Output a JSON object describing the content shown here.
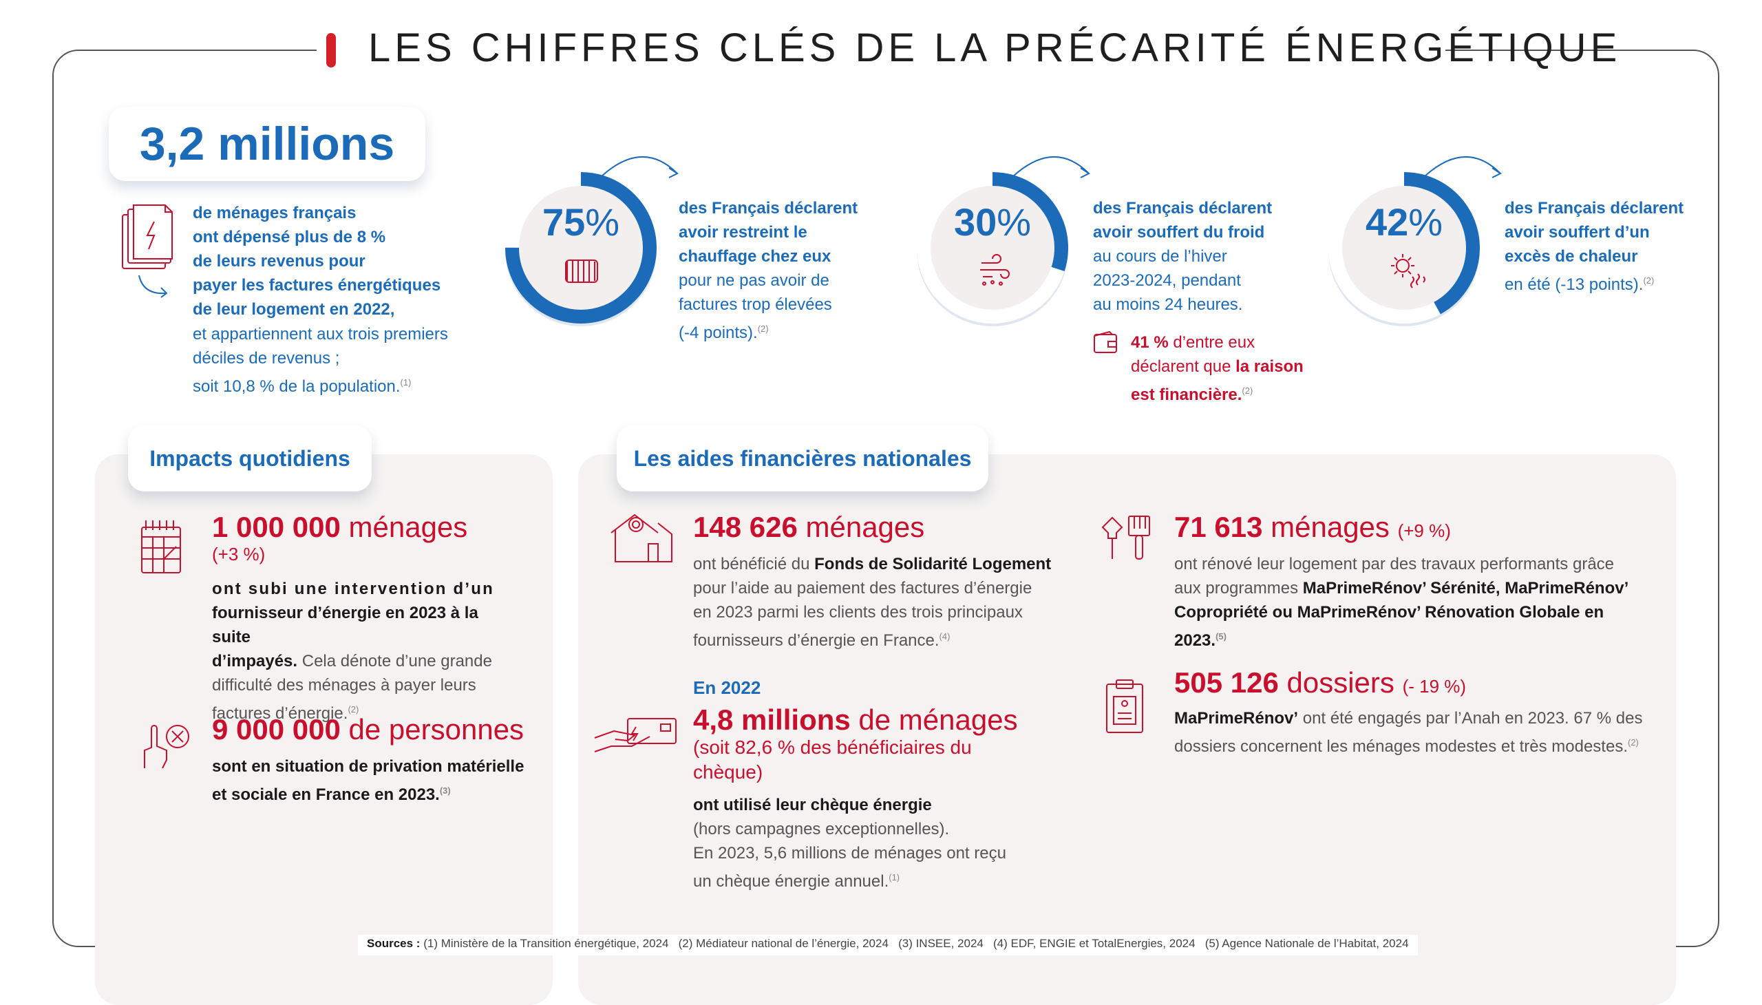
{
  "title": "LES CHIFFRES CLÉS DE LA PRÉCARITÉ ÉNERGÉTIQUE",
  "colors": {
    "accent_blue": "#1c6bb8",
    "accent_red": "#c8102e",
    "panel": "#f5f2f1"
  },
  "key_figure": {
    "value": "3,2 millions",
    "line1": "de ménages français",
    "line2": "ont dépensé plus de 8 %",
    "line3": "de leurs revenus pour",
    "line4": "payer les factures énergétiques",
    "line5": "de leur logement en 2022,",
    "line6": "et appartiennent aux trois premiers",
    "line7": "déciles de revenus ;",
    "line8": "soit 10,8 % de la population.",
    "ref": "(1)",
    "icon": "document-energy-icon"
  },
  "stats": [
    {
      "value": "75",
      "unit": "%",
      "fraction": 0.75,
      "icon": "radiator-icon",
      "bold1": "des Français déclarent",
      "bold2": "avoir restreint le",
      "bold3": "chauffage chez eux",
      "rest1": "pour ne pas avoir de",
      "rest2": "factures trop élevées",
      "rest3": "(-4 points).",
      "ref": "(2)"
    },
    {
      "value": "30",
      "unit": "%",
      "fraction": 0.3,
      "icon": "cold-wind-icon",
      "bold1": "des Français déclarent",
      "bold2": "avoir souffert du froid",
      "rest1": "au cours de l’hiver",
      "rest2": "2023-2024, pendant",
      "rest3": "au moins 24 heures.",
      "note_value": "41 %",
      "note_text1": "d’entre eux",
      "note_text2": "déclarent que",
      "note_bold1": "la raison",
      "note_bold2": "est financière.",
      "note_ref": "(2)",
      "note_icon": "wallet-icon"
    },
    {
      "value": "42",
      "unit": "%",
      "fraction": 0.42,
      "icon": "sun-heat-icon",
      "bold1": "des Français déclarent",
      "bold2": "avoir souffert d’un",
      "bold3": "excès de chaleur",
      "rest1": "en été (-13 points).",
      "ref": "(2)"
    }
  ],
  "impacts": {
    "heading": "Impacts quotidiens",
    "item1": {
      "number": "1 000 000",
      "unit": "ménages",
      "change": "(+3 %)",
      "bold1": "ont subi une intervention d’un",
      "bold2": "fournisseur d’énergie en 2023 à la suite",
      "bold3": "d’impayés.",
      "rest1": "Cela dénote d’une grande",
      "rest2": "difficulté des ménages à payer leurs",
      "rest3": "factures d’énergie.",
      "ref": "(2)",
      "icon": "calendar-icon"
    },
    "item2": {
      "number": "9 000 000",
      "unit": "de personnes",
      "bold1": "sont en situation de privation matérielle",
      "bold2": "et sociale en France en 2023.",
      "ref": "(3)",
      "icon": "hand-cancel-icon"
    }
  },
  "aides": {
    "heading": "Les aides financières nationales",
    "fsl": {
      "number": "148 626",
      "unit": "ménages",
      "line1a": "ont bénéficié du",
      "line1b": "Fonds de Solidarité Logement",
      "line2": "pour l’aide au paiement des factures d’énergie",
      "line3": "en 2023 parmi les clients des trois principaux",
      "line4": "fournisseurs d’énergie en France.",
      "ref": "(4)",
      "icon": "house-icon"
    },
    "cheque": {
      "year": "En 2022",
      "number": "4,8 millions",
      "unit": "de ménages",
      "sub1": "(soit 82,6 % des bénéficiaires du",
      "sub2": "chèque)",
      "bold1": "ont utilisé leur chèque énergie",
      "rest1": "(hors campagnes exceptionnelles).",
      "rest2": "En 2023, 5,6 millions de ménages ont reçu",
      "rest3": "un chèque énergie annuel.",
      "ref": "(1)",
      "icon": "hand-cheque-icon"
    },
    "renov": {
      "number": "71 613",
      "unit": "ménages",
      "change": "(+9 %)",
      "line1": "ont rénové leur logement par des travaux performants grâce",
      "line2a": "aux programmes",
      "line2b": "MaPrimeRénov’ Sérénité, MaPrimeRénov’",
      "line3": "Copropriété ou MaPrimeRénov’ Rénovation Globale en",
      "line4": "2023.",
      "ref": "(5)",
      "icon": "tools-icon"
    },
    "dossiers": {
      "number": "505 126",
      "unit": "dossiers",
      "change": "(- 19 %)",
      "line1a": "MaPrimeRénov’",
      "line1b": "ont été engagés par l’Anah en 2023. 67 % des",
      "line2": "dossiers concernent les ménages modestes et très modestes.",
      "ref": "(2)",
      "icon": "clipboard-icon"
    }
  },
  "sources": {
    "label": "Sources :",
    "text": "(1) Ministère de la Transition énergétique, 2024   (2) Médiateur national de l’énergie, 2024   (3) INSEE, 2024   (4) EDF, ENGIE et TotalEnergies, 2024   (5) Agence Nationale de l’Habitat, 2024"
  }
}
